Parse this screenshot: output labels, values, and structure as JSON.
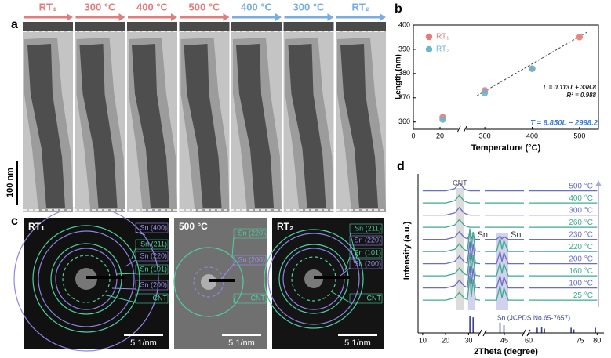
{
  "panel_a": {
    "letter": "a",
    "headers": [
      {
        "text": "RT₁",
        "color": "#e27d7d"
      },
      {
        "text": "300 °C",
        "color": "#e27d7d"
      },
      {
        "text": "400 °C",
        "color": "#e27d7d"
      },
      {
        "text": "500 °C",
        "color": "#e27d7d"
      },
      {
        "text": "400 °C",
        "color": "#79aee0"
      },
      {
        "text": "300 °C",
        "color": "#79aee0"
      },
      {
        "text": "RT₂",
        "color": "#79aee0"
      }
    ],
    "scale_bar": "100 nm"
  },
  "panel_c": {
    "letter": "c",
    "images": [
      {
        "title": "RT₁",
        "scale_bar": "5 1/nm",
        "labels": [
          {
            "text": "Sn (400)",
            "color": "#9a90f0"
          },
          {
            "text": "Sn (211)",
            "color": "#4fd0a0"
          },
          {
            "text": "Sn (220)",
            "color": "#9a90f0"
          },
          {
            "text": "Sn (101)",
            "color": "#4fd0a0"
          },
          {
            "text": "Sn (200)",
            "color": "#9a90f0"
          },
          {
            "text": "CNT",
            "color": "#4fd0a0"
          }
        ]
      },
      {
        "title": "500 °C",
        "scale_bar": "5 1/nm",
        "labels": [
          {
            "text": "Sn (220)",
            "color": "#4fd0a0"
          },
          {
            "text": "Sn (200)",
            "color": "#9a90f0"
          },
          {
            "text": "CNT",
            "color": "#4fd0a0"
          }
        ]
      },
      {
        "title": "RT₂",
        "scale_bar": "5 1/nm",
        "labels": [
          {
            "text": "Sn (211)",
            "color": "#4fd0a0"
          },
          {
            "text": "Sn (220)",
            "color": "#9a90f0"
          },
          {
            "text": "Sn (101)",
            "color": "#4fd0a0"
          },
          {
            "text": "Sn (200)",
            "color": "#9a90f0"
          },
          {
            "text": "CNT",
            "color": "#4fd0a0"
          }
        ]
      }
    ]
  },
  "chart_data": [
    {
      "type": "scatter",
      "panel_label": "b",
      "x_label": "Temperature (°C)",
      "y_label": "Length (nm)",
      "series": [
        {
          "name": "RT₁",
          "color": "#e47c7c",
          "x": [
            22,
            300,
            400,
            500
          ],
          "values": [
            362,
            373,
            382,
            395
          ]
        },
        {
          "name": "RT₂",
          "color": "#6fb5c9",
          "x": [
            22,
            300,
            400
          ],
          "values": [
            361,
            372,
            382
          ]
        }
      ],
      "xlim": [
        0,
        540
      ],
      "x_breaks": [
        [
          30,
          270
        ]
      ],
      "ylim": [
        357,
        400
      ],
      "xticks": [
        0,
        20,
        300,
        400,
        500
      ],
      "yticks": [
        360,
        370,
        380,
        390,
        400
      ],
      "fit": {
        "slope": 0.113,
        "intercept": 338.8
      },
      "annotations": [
        "L = 0.113T + 338.8",
        "R² = 0.988",
        "T = 8.850L − 2998.2"
      ]
    },
    {
      "type": "line",
      "panel_label": "d",
      "x_label": "2Theta (degree)",
      "y_label": "Intensity (a.u.)",
      "x": [
        10,
        20,
        24,
        26,
        28,
        29.5,
        30.6,
        31.2,
        32,
        33,
        35,
        40,
        43,
        43.9,
        44.4,
        44.9,
        46,
        50,
        60,
        63,
        64,
        65,
        70,
        80
      ],
      "series": [
        {
          "name": "500 °C",
          "color": "#6a6fc0",
          "values": [
            0.1,
            0.1,
            0.3,
            0.8,
            0.3,
            0.15,
            0.1,
            0.1,
            0.1,
            0.1,
            0.1,
            0.1,
            0.1,
            0.1,
            0.1,
            0.1,
            0.1,
            0.1,
            0.1,
            0.1,
            0.1,
            0.1,
            0.1,
            0.1
          ]
        },
        {
          "name": "400 °C",
          "color": "#3eab8c",
          "values": [
            0.1,
            0.1,
            0.3,
            0.8,
            0.3,
            0.15,
            0.1,
            0.1,
            0.1,
            0.1,
            0.1,
            0.1,
            0.1,
            0.1,
            0.1,
            0.1,
            0.1,
            0.1,
            0.1,
            0.1,
            0.1,
            0.1,
            0.1,
            0.1
          ]
        },
        {
          "name": "300 °C",
          "color": "#6a6fc0",
          "values": [
            0.1,
            0.1,
            0.3,
            0.8,
            0.3,
            0.15,
            0.1,
            0.1,
            0.1,
            0.1,
            0.1,
            0.1,
            0.1,
            0.1,
            0.1,
            0.1,
            0.1,
            0.1,
            0.1,
            0.1,
            0.1,
            0.1,
            0.1,
            0.1
          ]
        },
        {
          "name": "260 °C",
          "color": "#3eab8c",
          "values": [
            0.1,
            0.1,
            0.3,
            0.8,
            0.3,
            0.15,
            0.1,
            0.1,
            0.1,
            0.1,
            0.1,
            0.1,
            0.1,
            0.1,
            0.1,
            0.1,
            0.1,
            0.1,
            0.1,
            0.1,
            0.1,
            0.1,
            0.1,
            0.1
          ]
        },
        {
          "name": "230 °C",
          "color": "#6a6fc0",
          "values": [
            0.1,
            0.1,
            0.3,
            0.8,
            0.3,
            0.15,
            0.6,
            0.2,
            0.5,
            0.1,
            0.1,
            0.1,
            0.1,
            0.4,
            0.15,
            0.35,
            0.1,
            0.1,
            0.1,
            0.1,
            0.1,
            0.1,
            0.1,
            0.1
          ]
        },
        {
          "name": "220 °C",
          "color": "#3eab8c",
          "values": [
            0.1,
            0.1,
            0.3,
            0.8,
            0.3,
            0.15,
            2.2,
            0.4,
            1.9,
            0.15,
            0.1,
            0.1,
            0.1,
            1.3,
            0.3,
            1.1,
            0.1,
            0.1,
            0.1,
            0.1,
            0.1,
            0.1,
            0.1,
            0.1
          ]
        },
        {
          "name": "200 °C",
          "color": "#6a6fc0",
          "values": [
            0.1,
            0.1,
            0.3,
            0.8,
            0.3,
            0.15,
            2.1,
            0.4,
            1.9,
            0.15,
            0.1,
            0.1,
            0.1,
            1.2,
            0.3,
            1.1,
            0.1,
            0.1,
            0.1,
            0.1,
            0.1,
            0.1,
            0.1,
            0.1
          ]
        },
        {
          "name": "160 °C",
          "color": "#3eab8c",
          "values": [
            0.1,
            0.1,
            0.3,
            0.8,
            0.3,
            0.15,
            2.2,
            0.4,
            2.0,
            0.15,
            0.1,
            0.1,
            0.1,
            1.3,
            0.3,
            1.2,
            0.1,
            0.1,
            0.1,
            0.1,
            0.1,
            0.1,
            0.1,
            0.1
          ]
        },
        {
          "name": "100 °C",
          "color": "#6a6fc0",
          "values": [
            0.1,
            0.1,
            0.3,
            0.8,
            0.3,
            0.15,
            2.1,
            0.4,
            1.9,
            0.15,
            0.1,
            0.1,
            0.1,
            1.2,
            0.3,
            1.1,
            0.1,
            0.1,
            0.1,
            0.1,
            0.1,
            0.1,
            0.1,
            0.1
          ]
        },
        {
          "name": "25 °C",
          "color": "#3eab8c",
          "values": [
            0.1,
            0.1,
            0.3,
            0.8,
            0.3,
            0.15,
            2.3,
            0.4,
            2.0,
            0.15,
            0.1,
            0.1,
            0.1,
            1.4,
            0.3,
            1.2,
            0.1,
            0.1,
            0.1,
            0.1,
            0.1,
            0.1,
            0.1,
            0.1
          ]
        }
      ],
      "xlim": [
        8,
        82
      ],
      "x_breaks": [
        [
          35,
          40
        ],
        [
          50,
          60
        ]
      ],
      "xticks": [
        10,
        20,
        30,
        45,
        60,
        75,
        80
      ],
      "bands": [
        {
          "label": "CNT",
          "range": [
            24.5,
            28
          ],
          "color": "#9a9a9a"
        },
        {
          "label": "Sn",
          "range": [
            29.8,
            32.8
          ],
          "color": "#7f7fd0"
        },
        {
          "label": "Sn",
          "range": [
            43,
            46
          ],
          "color": "#7f7fd0"
        }
      ],
      "reference": {
        "name": "Sn (JCPDS No.65-7657)",
        "color": "#3a3f8f",
        "x": [
          30.6,
          32,
          43.9,
          44.9,
          62.5,
          63.8,
          64.6,
          72.4,
          73.2,
          79.5
        ],
        "values": [
          1,
          0.9,
          0.6,
          0.45,
          0.3,
          0.35,
          0.25,
          0.3,
          0.2,
          0.3
        ]
      }
    }
  ]
}
